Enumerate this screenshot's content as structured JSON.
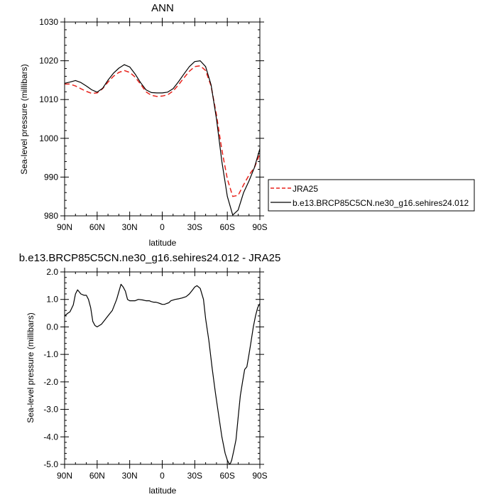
{
  "chart_data": [
    {
      "type": "line",
      "title": "ANN",
      "xlabel": "latitude",
      "ylabel": "Sea-level pressure (millibars)",
      "x_ticks": [
        "90N",
        "60N",
        "30N",
        "0",
        "30S",
        "60S",
        "90S"
      ],
      "x_tick_values": [
        90,
        60,
        30,
        0,
        -30,
        -60,
        -90
      ],
      "xlim": [
        90,
        -90
      ],
      "ylim": [
        980,
        1030
      ],
      "y_ticks": [
        "980",
        "990",
        "1000",
        "1010",
        "1020",
        "1030"
      ],
      "y_tick_values": [
        980,
        990,
        1000,
        1010,
        1020,
        1030
      ],
      "grid": false,
      "legend_position": "right",
      "series": [
        {
          "name": "JRA25",
          "color": "#e8221b",
          "dash": "dashed",
          "x": [
            90,
            85,
            80,
            75,
            70,
            65,
            60,
            55,
            50,
            45,
            40,
            35,
            30,
            25,
            20,
            15,
            10,
            5,
            0,
            -5,
            -10,
            -15,
            -20,
            -25,
            -30,
            -35,
            -40,
            -45,
            -50,
            -55,
            -60,
            -65,
            -70,
            -75,
            -80,
            -85,
            -90
          ],
          "y": [
            1014.0,
            1014.0,
            1013.5,
            1012.8,
            1012.1,
            1011.6,
            1011.7,
            1012.8,
            1014.5,
            1016.0,
            1017.0,
            1017.5,
            1017.0,
            1015.8,
            1014.0,
            1012.0,
            1011.1,
            1010.8,
            1010.9,
            1011.2,
            1012.2,
            1013.8,
            1015.6,
            1017.3,
            1018.5,
            1018.7,
            1017.5,
            1013.5,
            1006.0,
            997.0,
            989.5,
            985.0,
            985.3,
            988.0,
            990.5,
            992.5,
            996.0
          ]
        },
        {
          "name": "b.e13.BRCP85C5CN.ne30_g16.sehires24.012",
          "color": "#000000",
          "dash": "solid",
          "x": [
            90,
            85,
            80,
            75,
            70,
            65,
            60,
            55,
            50,
            45,
            40,
            35,
            30,
            25,
            20,
            15,
            10,
            5,
            0,
            -5,
            -10,
            -15,
            -20,
            -25,
            -30,
            -35,
            -40,
            -45,
            -50,
            -55,
            -60,
            -65,
            -70,
            -75,
            -80,
            -85,
            -90
          ],
          "y": [
            1014.2,
            1014.5,
            1014.9,
            1014.4,
            1013.5,
            1012.5,
            1011.9,
            1012.9,
            1015.0,
            1016.8,
            1018.1,
            1019.0,
            1018.4,
            1016.6,
            1014.4,
            1012.5,
            1011.8,
            1011.7,
            1011.7,
            1011.9,
            1012.8,
            1014.6,
            1016.6,
            1018.5,
            1019.8,
            1020.0,
            1018.5,
            1013.8,
            1005.0,
            994.0,
            985.0,
            980.2,
            981.5,
            986.0,
            989.0,
            992.5,
            997.3
          ]
        }
      ]
    },
    {
      "type": "line",
      "title": "b.e13.BRCP85C5CN.ne30_g16.sehires24.012 - JRA25",
      "xlabel": "latitude",
      "ylabel": "Sea-level pressure (millibars)",
      "x_ticks": [
        "90N",
        "60N",
        "30N",
        "0",
        "30S",
        "60S",
        "90S"
      ],
      "x_tick_values": [
        90,
        60,
        30,
        0,
        -30,
        -60,
        -90
      ],
      "xlim": [
        90,
        -90
      ],
      "ylim": [
        -5.0,
        2.0
      ],
      "y_ticks": [
        "-5.0",
        "-4.0",
        "-3.0",
        "-2.0",
        "-1.0",
        "0.0",
        "1.0",
        "2.0"
      ],
      "y_tick_values": [
        -5,
        -4,
        -3,
        -2,
        -1,
        0,
        1,
        2
      ],
      "grid": false,
      "series": [
        {
          "color": "#000000",
          "dash": "solid",
          "x": [
            90,
            87,
            85,
            82,
            80,
            78,
            75,
            72,
            70,
            68,
            66,
            64,
            62,
            60,
            58,
            56,
            54,
            50,
            46,
            42,
            38,
            36,
            34,
            32,
            30,
            28,
            25,
            22,
            18,
            15,
            12,
            10,
            8,
            6,
            4,
            2,
            0,
            -2,
            -4,
            -6,
            -8,
            -12,
            -15,
            -18,
            -22,
            -25,
            -28,
            -30,
            -32,
            -35,
            -38,
            -40,
            -43,
            -46,
            -49,
            -52,
            -55,
            -58,
            -60,
            -62,
            -63,
            -64,
            -66,
            -68,
            -70,
            -72,
            -74,
            -76,
            -78,
            -80,
            -82,
            -84,
            -86,
            -88,
            -90
          ],
          "y": [
            0.4,
            0.5,
            0.55,
            0.8,
            1.2,
            1.35,
            1.2,
            1.15,
            1.15,
            1.0,
            0.7,
            0.2,
            0.05,
            0.0,
            0.05,
            0.1,
            0.2,
            0.4,
            0.6,
            1.0,
            1.55,
            1.45,
            1.3,
            1.0,
            0.95,
            0.95,
            0.95,
            1.0,
            0.98,
            0.95,
            0.95,
            0.92,
            0.9,
            0.9,
            0.88,
            0.85,
            0.82,
            0.82,
            0.85,
            0.88,
            0.95,
            1.0,
            1.02,
            1.05,
            1.1,
            1.2,
            1.35,
            1.45,
            1.5,
            1.4,
            1.0,
            0.3,
            -0.5,
            -1.5,
            -2.4,
            -3.2,
            -4.0,
            -4.6,
            -4.85,
            -5.0,
            -4.95,
            -4.85,
            -4.5,
            -4.1,
            -3.3,
            -2.5,
            -2.0,
            -1.55,
            -1.45,
            -1.0,
            -0.5,
            0.0,
            0.4,
            0.7,
            0.85
          ]
        }
      ]
    }
  ]
}
